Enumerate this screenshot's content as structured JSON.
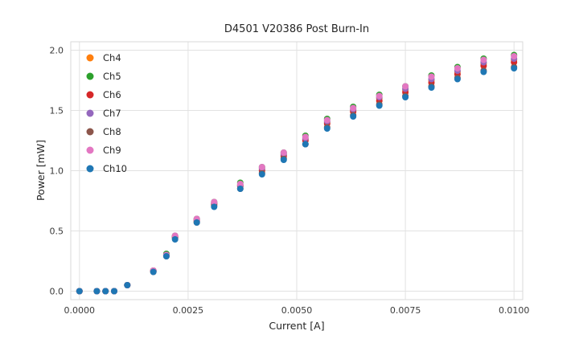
{
  "chart_data": {
    "type": "scatter",
    "title": "D4501 V20386 Post Burn-In",
    "xlabel": "Current [A]",
    "ylabel": "Power [mW]",
    "xlim": [
      -0.0002,
      0.0102
    ],
    "ylim": [
      -0.07,
      2.07
    ],
    "xticks": [
      0.0,
      0.0025,
      0.005,
      0.0075,
      0.01
    ],
    "xtick_labels": [
      "0.0000",
      "0.0025",
      "0.0050",
      "0.0075",
      "0.0100"
    ],
    "yticks": [
      0.0,
      0.5,
      1.0,
      1.5,
      2.0
    ],
    "ytick_labels": [
      "0.0",
      "0.5",
      "1.0",
      "1.5",
      "2.0"
    ],
    "grid": true,
    "grid_color": "#e2e2e2",
    "border_color": "#d9d9d9",
    "legend_position": "upper left",
    "marker_radius": 4,
    "x": [
      0.0,
      0.0004,
      0.0006,
      0.0008,
      0.0011,
      0.0017,
      0.002,
      0.0022,
      0.0027,
      0.0031,
      0.0037,
      0.0042,
      0.0047,
      0.0052,
      0.0057,
      0.0063,
      0.0069,
      0.0075,
      0.0081,
      0.0087,
      0.0093,
      0.01
    ],
    "series": [
      {
        "name": "Ch4",
        "color": "#ff7f0e",
        "values": [
          0,
          0,
          0,
          0,
          0.05,
          0.17,
          0.3,
          0.45,
          0.59,
          0.73,
          0.88,
          1.01,
          1.13,
          1.26,
          1.4,
          1.5,
          1.6,
          1.67,
          1.75,
          1.82,
          1.89,
          1.92
        ]
      },
      {
        "name": "Ch5",
        "color": "#2ca02c",
        "values": [
          0,
          0,
          0,
          0,
          0.05,
          0.17,
          0.31,
          0.46,
          0.6,
          0.74,
          0.9,
          1.03,
          1.15,
          1.29,
          1.43,
          1.53,
          1.63,
          1.7,
          1.79,
          1.86,
          1.93,
          1.96
        ]
      },
      {
        "name": "Ch6",
        "color": "#d62728",
        "values": [
          0,
          0,
          0,
          0,
          0.05,
          0.17,
          0.3,
          0.45,
          0.58,
          0.72,
          0.87,
          1.0,
          1.12,
          1.25,
          1.39,
          1.49,
          1.58,
          1.65,
          1.73,
          1.8,
          1.87,
          1.9
        ]
      },
      {
        "name": "Ch7",
        "color": "#9467bd",
        "values": [
          0,
          0,
          0,
          0,
          0.05,
          0.17,
          0.3,
          0.45,
          0.59,
          0.73,
          0.88,
          1.02,
          1.14,
          1.27,
          1.41,
          1.51,
          1.61,
          1.68,
          1.76,
          1.83,
          1.9,
          1.93
        ]
      },
      {
        "name": "Ch8",
        "color": "#8c564b",
        "values": [
          0,
          0,
          0,
          0,
          0.05,
          0.16,
          0.29,
          0.44,
          0.57,
          0.71,
          0.85,
          0.98,
          1.1,
          1.22,
          1.36,
          1.46,
          1.55,
          1.62,
          1.7,
          1.77,
          1.83,
          1.86
        ]
      },
      {
        "name": "Ch9",
        "color": "#e377c2",
        "values": [
          0,
          0,
          0,
          0,
          0.05,
          0.17,
          0.3,
          0.46,
          0.6,
          0.74,
          0.89,
          1.03,
          1.15,
          1.28,
          1.42,
          1.52,
          1.62,
          1.7,
          1.78,
          1.85,
          1.92,
          1.95
        ]
      },
      {
        "name": "Ch10",
        "color": "#1f77b4",
        "values": [
          0,
          0,
          0,
          0,
          0.05,
          0.16,
          0.29,
          0.43,
          0.57,
          0.7,
          0.85,
          0.97,
          1.09,
          1.22,
          1.35,
          1.45,
          1.54,
          1.61,
          1.69,
          1.76,
          1.82,
          1.85
        ]
      }
    ]
  }
}
